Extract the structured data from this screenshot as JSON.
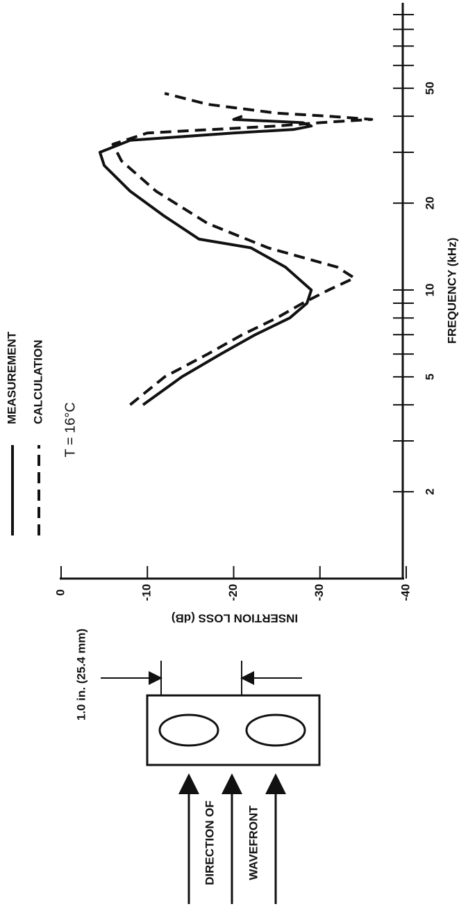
{
  "chart_data": {
    "type": "line",
    "xlabel": "FREQUENCY (kHz)",
    "ylabel": "INSERTION LOSS (dB)",
    "annotation": "T = 16°C",
    "xscale": "log",
    "xlim": [
      1,
      100
    ],
    "xticks": [
      2,
      5,
      10,
      20,
      50
    ],
    "xticks_minor": [
      3,
      4,
      6,
      7,
      8,
      9,
      30,
      40,
      60,
      70,
      80,
      90
    ],
    "ylim": [
      -40,
      0
    ],
    "yticks": [
      0,
      -10,
      -20,
      -30,
      -40
    ],
    "series": [
      {
        "name": "MEASUREMENT",
        "color": "#111111",
        "style": "solid",
        "x": [
          4.0,
          5,
          6,
          7,
          8,
          9,
          10,
          12,
          14,
          15,
          18,
          22,
          27,
          30,
          33,
          35,
          36,
          37,
          38,
          39,
          40
        ],
        "values": [
          -9.5,
          -14,
          -18.5,
          -22.5,
          -26.5,
          -28.5,
          -29,
          -26,
          -22,
          -16,
          -12,
          -8,
          -5,
          -4.5,
          -8,
          -20,
          -27,
          -29,
          -28,
          -20,
          -21
        ]
      },
      {
        "name": "CALCULATION",
        "color": "#111111",
        "style": "dashed",
        "x": [
          4.0,
          5,
          6,
          7,
          8,
          9,
          10,
          11,
          12,
          14,
          17,
          22,
          28,
          32,
          35,
          37,
          38,
          39,
          40,
          41,
          44,
          48
        ],
        "values": [
          -8,
          -12,
          -17,
          -21,
          -25,
          -28,
          -31,
          -34,
          -32,
          -24,
          -17,
          -11,
          -7,
          -6,
          -10,
          -25,
          -30,
          -36,
          -31,
          -25,
          -17,
          -12
        ]
      }
    ]
  },
  "diagram": {
    "dimension": "1.0 in. (25.4 mm)",
    "direction": [
      "DIRECTION OF",
      "WAVEFRONT"
    ]
  }
}
